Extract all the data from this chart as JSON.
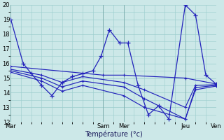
{
  "background_color": "#cce8e8",
  "grid_color": "#99cccc",
  "line_color": "#2222bb",
  "xlabel": "Température (°c)",
  "ylim": [
    12,
    20
  ],
  "yticks": [
    12,
    13,
    14,
    15,
    16,
    17,
    18,
    19,
    20
  ],
  "xtick_labels": [
    "Mar",
    "Sam",
    "Mer",
    "Jeu",
    "Ven"
  ],
  "xtick_positions": [
    0,
    4.5,
    5.5,
    8.5,
    10
  ],
  "main_x": [
    0,
    0.6,
    1.0,
    1.5,
    2.0,
    2.5,
    3.0,
    3.5,
    4.0,
    4.4,
    4.8,
    5.3,
    5.7,
    6.2,
    6.7,
    7.2,
    7.7,
    8.5,
    9.0,
    9.5,
    10.0
  ],
  "main_y": [
    19,
    16,
    15.3,
    14.5,
    13.8,
    14.7,
    15.1,
    15.3,
    15.5,
    16.5,
    18.3,
    17.4,
    17.4,
    14.5,
    12.5,
    13.1,
    12.2,
    20.0,
    19.3,
    15.2,
    14.6
  ],
  "flat1_x": [
    0,
    4.5,
    5.5,
    8.5,
    10.0
  ],
  "flat1_y": [
    15.8,
    15.2,
    15.2,
    15.0,
    14.6
  ],
  "slope2_x": [
    0,
    1.5,
    2.5,
    3.5,
    5.5,
    6.5,
    8.5,
    9.0,
    10.0
  ],
  "slope2_y": [
    15.6,
    15.2,
    14.7,
    15.1,
    14.7,
    14.2,
    13.0,
    14.5,
    14.55
  ],
  "slope3_x": [
    0,
    1.5,
    2.5,
    3.5,
    5.5,
    6.5,
    8.5,
    9.0,
    10.0
  ],
  "slope3_y": [
    15.5,
    15.0,
    14.4,
    14.8,
    14.4,
    13.6,
    12.2,
    14.35,
    14.5
  ],
  "slope4_x": [
    0,
    1.5,
    2.5,
    3.5,
    5.5,
    6.5,
    8.5,
    9.0,
    10.0
  ],
  "slope4_y": [
    15.4,
    14.8,
    14.1,
    14.5,
    13.8,
    13.0,
    12.2,
    14.2,
    14.45
  ]
}
